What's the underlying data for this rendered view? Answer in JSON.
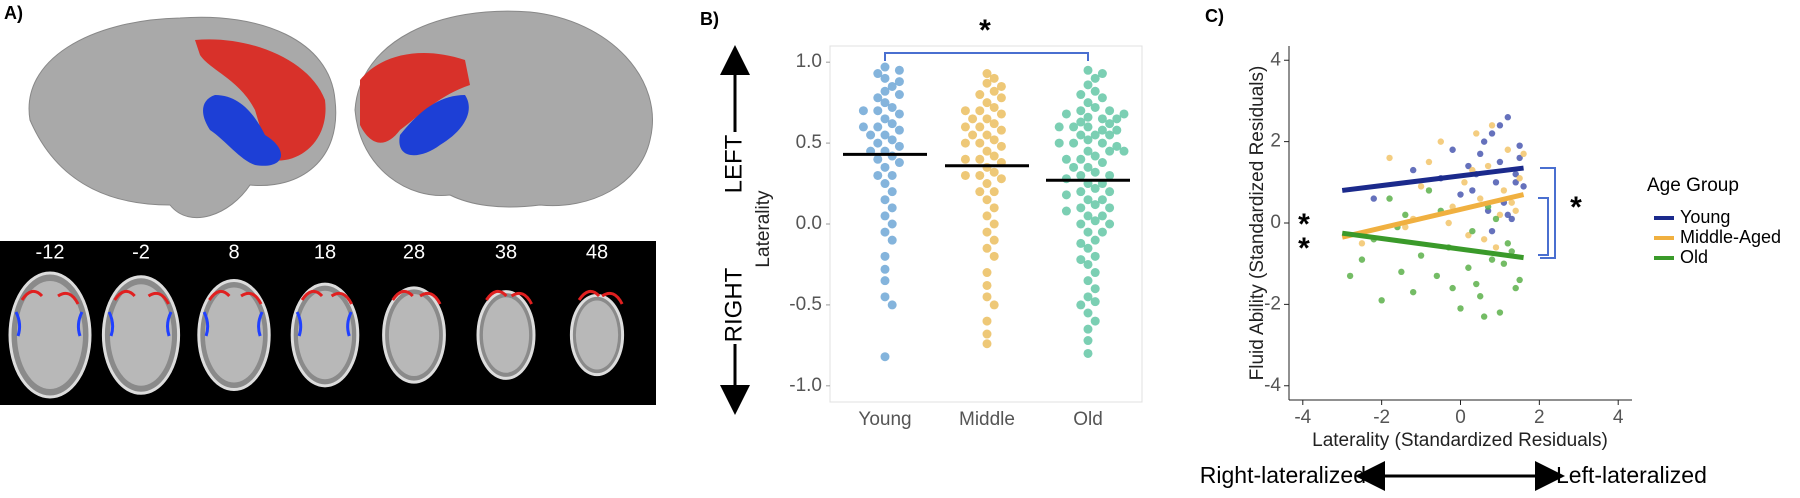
{
  "panel_a": {
    "label": "A)",
    "slices": [
      "-12",
      "-2",
      "8",
      "18",
      "28",
      "38",
      "48"
    ]
  },
  "chart_data": [
    {
      "type": "swarm",
      "panel_label": "B)",
      "y_label": "Laterality",
      "top_side_label": "LEFT",
      "bottom_side_label": "RIGHT",
      "significance": "*",
      "categories": [
        "Young",
        "Middle",
        "Old"
      ],
      "ylim": [
        -1.1,
        1.1
      ],
      "yticks": [
        {
          "value": 1.0,
          "label": "1.0"
        },
        0.5,
        {
          "value": 0,
          "label": "0.0"
        },
        -0.5,
        {
          "value": -1.0,
          "label": "-1.0"
        }
      ],
      "groups": [
        {
          "color": "#5b9bd0",
          "mean": 0.43,
          "values": [
            0.97,
            0.95,
            0.93,
            0.9,
            0.88,
            0.85,
            0.82,
            0.8,
            0.78,
            0.75,
            0.72,
            0.7,
            0.68,
            0.65,
            0.62,
            0.6,
            0.58,
            0.55,
            0.52,
            0.5,
            0.48,
            0.45,
            0.42,
            0.4,
            0.38,
            0.35,
            0.3,
            0.25,
            0.2,
            0.15,
            0.1,
            0.05,
            0.0,
            -0.05,
            -0.1,
            -0.2,
            -0.28,
            -0.35,
            -0.45,
            -0.5,
            -0.82,
            0.6,
            0.7,
            0.55,
            0.45,
            0.3
          ]
        },
        {
          "color": "#e8b54a",
          "mean": 0.36,
          "values": [
            0.93,
            0.9,
            0.87,
            0.85,
            0.82,
            0.8,
            0.78,
            0.75,
            0.72,
            0.7,
            0.68,
            0.65,
            0.62,
            0.6,
            0.58,
            0.55,
            0.52,
            0.5,
            0.48,
            0.45,
            0.42,
            0.4,
            0.38,
            0.35,
            0.32,
            0.3,
            0.28,
            0.25,
            0.2,
            0.15,
            0.1,
            0.05,
            0.0,
            -0.05,
            -0.1,
            -0.15,
            -0.2,
            -0.3,
            -0.38,
            -0.45,
            -0.5,
            -0.6,
            -0.68,
            -0.74,
            0.6,
            0.7,
            0.5,
            0.4,
            0.55,
            0.65,
            0.3,
            0.2
          ]
        },
        {
          "color": "#4fbf9a",
          "mean": 0.27,
          "values": [
            0.95,
            0.93,
            0.9,
            0.86,
            0.82,
            0.8,
            0.78,
            0.75,
            0.72,
            0.7,
            0.7,
            0.68,
            0.66,
            0.65,
            0.63,
            0.6,
            0.6,
            0.58,
            0.55,
            0.55,
            0.52,
            0.5,
            0.5,
            0.48,
            0.45,
            0.45,
            0.42,
            0.4,
            0.4,
            0.38,
            0.35,
            0.35,
            0.32,
            0.3,
            0.3,
            0.28,
            0.25,
            0.25,
            0.22,
            0.2,
            0.2,
            0.18,
            0.15,
            0.15,
            0.12,
            0.1,
            0.1,
            0.08,
            0.05,
            0.05,
            0.02,
            0.0,
            0.0,
            -0.05,
            -0.05,
            -0.1,
            -0.12,
            -0.15,
            -0.2,
            -0.22,
            -0.25,
            -0.3,
            -0.35,
            -0.4,
            -0.45,
            -0.48,
            -0.5,
            -0.55,
            -0.6,
            -0.65,
            -0.72,
            -0.8,
            0.65,
            0.6,
            0.55,
            0.5,
            0.45,
            0.68,
            0.62,
            0.58
          ]
        }
      ]
    },
    {
      "type": "scatter",
      "panel_label": "C)",
      "x_label": "Laterality (Standardized Residuals)",
      "y_label": "Fluid Ability (Standardized Residuals)",
      "legend_title": "Age Group",
      "significance": [
        "*",
        "*",
        "*"
      ],
      "axis_arrow_left": "Right-lateralized",
      "axis_arrow_right": "Left-lateralized",
      "xlim": [
        -4.35,
        4.35
      ],
      "xticks": [
        -4,
        -2,
        0,
        2,
        4
      ],
      "ylim": [
        -4.35,
        4.35
      ],
      "yticks": [
        -4,
        -2,
        0,
        2,
        4
      ],
      "series": [
        {
          "name": "Young",
          "color": "#1b2a8c",
          "point_color": "#4a58b0",
          "x": [
            1.2,
            0.8,
            1.5,
            0.5,
            1.0,
            0.2,
            1.4,
            -0.5,
            0.9,
            1.6,
            0.3,
            -1.2,
            1.1,
            0.7,
            1.3,
            -0.2,
            0.6,
            1.5,
            0.0,
            1.0,
            -2.2,
            0.4,
            1.2,
            0.8,
            1.4
          ],
          "y": [
            2.6,
            2.2,
            1.9,
            1.7,
            1.5,
            1.4,
            1.2,
            1.1,
            1.0,
            0.9,
            0.8,
            1.3,
            0.5,
            0.3,
            0.1,
            1.8,
            2.0,
            1.6,
            0.7,
            2.4,
            0.6,
            1.2,
            0.2,
            -0.2,
            1.0
          ],
          "fit": {
            "x": [
              -3,
              1.6
            ],
            "y": [
              0.8,
              1.35
            ]
          }
        },
        {
          "name": "Middle-Aged",
          "color": "#f0b040",
          "point_color": "#f2c46a",
          "x": [
            -1.8,
            -0.5,
            0.8,
            1.2,
            0.3,
            -1.0,
            1.5,
            0.5,
            -0.2,
            1.0,
            -1.4,
            0.6,
            1.3,
            -0.8,
            0.1,
            0.9,
            1.6,
            -2.5,
            0.4,
            1.1,
            -0.3,
            0.7,
            1.4,
            -1.2,
            0.2
          ],
          "y": [
            1.6,
            2.0,
            2.4,
            1.8,
            1.3,
            0.9,
            1.1,
            0.6,
            0.4,
            0.2,
            -0.1,
            -0.4,
            0.5,
            1.5,
            1.0,
            -0.6,
            1.7,
            -0.5,
            2.2,
            0.8,
            0.0,
            1.4,
            0.3,
            0.1,
            -0.3
          ],
          "fit": {
            "x": [
              -3,
              1.6
            ],
            "y": [
              -0.35,
              0.7
            ]
          }
        },
        {
          "name": "Old",
          "color": "#3a9a2a",
          "point_color": "#5cb04a",
          "x": [
            -2.8,
            -2.2,
            -1.8,
            -1.5,
            -1.0,
            -0.5,
            -0.2,
            0.0,
            0.3,
            0.5,
            0.8,
            1.0,
            1.2,
            1.5,
            -2.5,
            -1.2,
            -0.8,
            0.2,
            0.6,
            0.9,
            1.3,
            -1.6,
            -0.3,
            0.4,
            1.1,
            -2.0,
            0.7,
            1.4,
            -0.6,
            -1.4
          ],
          "y": [
            -1.3,
            -0.4,
            0.6,
            -1.2,
            -0.8,
            0.3,
            -1.6,
            -2.1,
            -0.2,
            -1.8,
            -0.9,
            -2.2,
            -0.5,
            -1.4,
            -0.9,
            -1.7,
            0.8,
            -1.1,
            -2.3,
            0.1,
            -0.7,
            -0.1,
            -0.6,
            -1.5,
            -1.0,
            -1.9,
            0.4,
            -1.6,
            -1.3,
            0.2
          ],
          "fit": {
            "x": [
              -3,
              1.6
            ],
            "y": [
              -0.25,
              -0.85
            ]
          }
        }
      ]
    }
  ]
}
